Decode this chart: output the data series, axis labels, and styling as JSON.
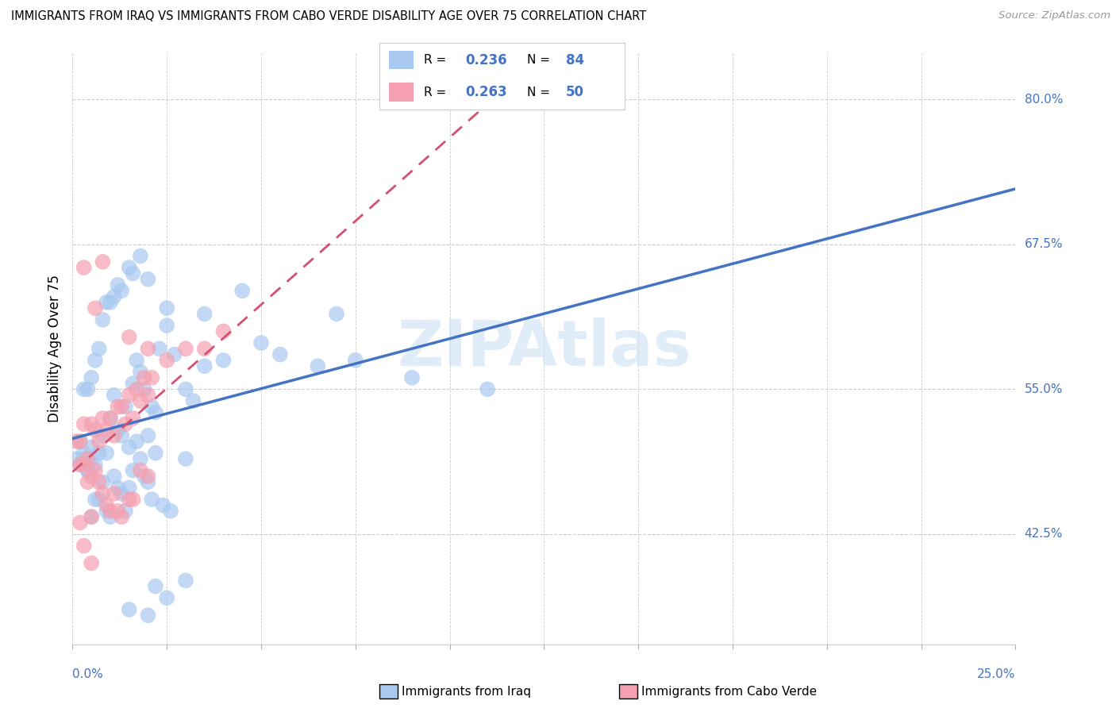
{
  "title": "IMMIGRANTS FROM IRAQ VS IMMIGRANTS FROM CABO VERDE DISABILITY AGE OVER 75 CORRELATION CHART",
  "source": "Source: ZipAtlas.com",
  "ylabel": "Disability Age Over 75",
  "right_yticks": [
    42.5,
    55.0,
    67.5,
    80.0
  ],
  "right_ytick_labels": [
    "42.5%",
    "55.0%",
    "67.5%",
    "80.0%"
  ],
  "xlim": [
    0.0,
    25.0
  ],
  "ylim": [
    33.0,
    84.0
  ],
  "iraq_color": "#a8c8f0",
  "iraq_line_color": "#4472c4",
  "cabo_color": "#f5a0b0",
  "cabo_line_color": "#d45070",
  "iraq_R": 0.236,
  "iraq_N": 84,
  "cabo_R": 0.263,
  "cabo_N": 50,
  "legend_label_iraq": "Immigrants from Iraq",
  "legend_label_cabo": "Immigrants from Cabo Verde",
  "watermark": "ZIPAtlas",
  "iraq_scatter_x": [
    0.2,
    0.3,
    0.4,
    0.5,
    0.6,
    0.7,
    0.8,
    0.9,
    1.0,
    1.1,
    1.2,
    1.3,
    1.4,
    1.5,
    1.6,
    1.7,
    1.8,
    1.9,
    2.0,
    2.1,
    2.2,
    2.3,
    2.5,
    2.7,
    3.0,
    3.2,
    3.5,
    0.5,
    0.6,
    0.7,
    0.8,
    0.9,
    1.0,
    1.1,
    1.2,
    1.3,
    1.4,
    1.5,
    1.6,
    1.7,
    1.8,
    1.9,
    2.0,
    2.1,
    2.2,
    2.4,
    2.6,
    3.0,
    0.3,
    0.4,
    0.5,
    0.6,
    0.7,
    0.8,
    0.9,
    1.0,
    1.1,
    1.2,
    1.3,
    1.5,
    1.6,
    1.8,
    2.0,
    2.5,
    3.5,
    4.5,
    5.5,
    7.0,
    7.5,
    9.0,
    11.0,
    0.1,
    0.2,
    0.3,
    0.4,
    0.5,
    2.5,
    3.0,
    1.5,
    2.0,
    2.2,
    4.0,
    5.0,
    6.5
  ],
  "iraq_scatter_y": [
    50.5,
    49.0,
    48.0,
    50.0,
    48.5,
    49.5,
    51.0,
    49.5,
    52.5,
    54.5,
    51.5,
    51.0,
    53.5,
    50.0,
    55.5,
    57.5,
    56.5,
    55.0,
    51.0,
    53.5,
    53.0,
    58.5,
    62.0,
    58.0,
    55.0,
    54.0,
    57.0,
    44.0,
    45.5,
    45.5,
    47.0,
    44.5,
    44.0,
    47.5,
    46.5,
    46.0,
    44.5,
    46.5,
    48.0,
    50.5,
    49.0,
    47.5,
    47.0,
    45.5,
    49.5,
    45.0,
    44.5,
    49.0,
    55.0,
    55.0,
    56.0,
    57.5,
    58.5,
    61.0,
    62.5,
    62.5,
    63.0,
    64.0,
    63.5,
    65.5,
    65.0,
    66.5,
    64.5,
    60.5,
    61.5,
    63.5,
    58.0,
    61.5,
    57.5,
    56.0,
    55.0,
    49.0,
    48.5,
    49.5,
    48.0,
    49.0,
    37.0,
    38.5,
    36.0,
    35.5,
    38.0,
    57.5,
    59.0,
    57.0
  ],
  "cabo_scatter_x": [
    0.1,
    0.2,
    0.3,
    0.4,
    0.5,
    0.6,
    0.7,
    0.8,
    0.9,
    1.0,
    1.1,
    1.2,
    1.3,
    1.4,
    1.5,
    1.6,
    1.7,
    1.8,
    1.9,
    2.0,
    2.1,
    2.5,
    3.0,
    3.5,
    4.0,
    0.2,
    0.3,
    0.4,
    0.5,
    0.6,
    0.7,
    0.8,
    0.9,
    1.0,
    1.1,
    1.2,
    1.3,
    1.5,
    1.6,
    1.8,
    2.0,
    0.2,
    0.3,
    0.5,
    0.6,
    0.8,
    1.5,
    2.0,
    0.3,
    0.5
  ],
  "cabo_scatter_y": [
    50.5,
    50.5,
    52.0,
    49.0,
    52.0,
    51.5,
    50.5,
    52.5,
    51.5,
    52.5,
    51.0,
    53.5,
    53.5,
    52.0,
    54.5,
    52.5,
    55.0,
    54.0,
    56.0,
    54.5,
    56.0,
    57.5,
    58.5,
    58.5,
    60.0,
    48.5,
    48.5,
    47.0,
    47.5,
    48.0,
    47.0,
    46.0,
    45.0,
    44.5,
    46.0,
    44.5,
    44.0,
    45.5,
    45.5,
    48.0,
    47.5,
    43.5,
    41.5,
    44.0,
    62.0,
    66.0,
    59.5,
    58.5,
    65.5,
    40.0
  ]
}
